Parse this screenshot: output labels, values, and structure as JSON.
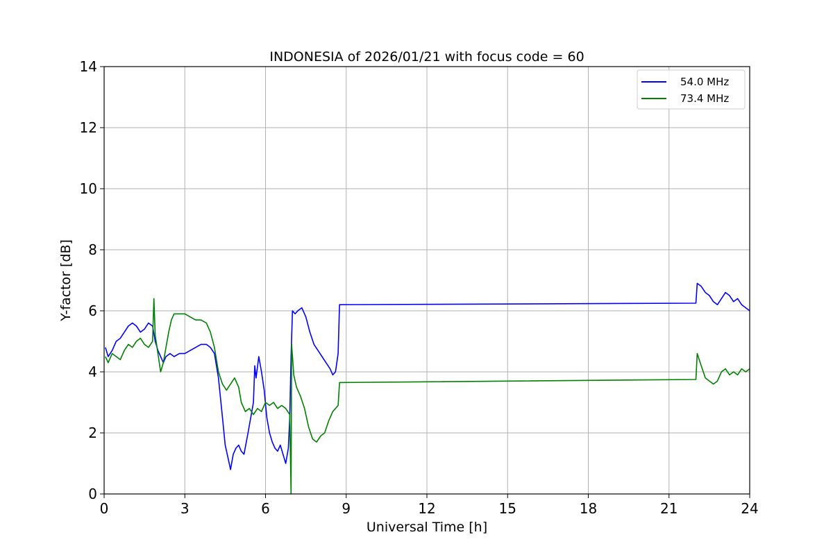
{
  "chart_data": {
    "type": "line",
    "title": "INDONESIA of 2026/01/21 with focus code = 60",
    "xlabel": "Universal Time [h]",
    "ylabel": "Y-factor [dB]",
    "xlim": [
      0,
      24
    ],
    "ylim": [
      0,
      14
    ],
    "xticks": [
      0,
      3,
      6,
      9,
      12,
      15,
      18,
      21,
      24
    ],
    "yticks": [
      0,
      2,
      4,
      6,
      8,
      10,
      12,
      14
    ],
    "grid": true,
    "legend_position": "top-right",
    "series": [
      {
        "name": "54.0 MHz",
        "color": "#0000ff",
        "points": [
          [
            0.05,
            4.8
          ],
          [
            0.15,
            4.5
          ],
          [
            0.3,
            4.7
          ],
          [
            0.45,
            5.0
          ],
          [
            0.6,
            5.1
          ],
          [
            0.75,
            5.3
          ],
          [
            0.9,
            5.5
          ],
          [
            1.05,
            5.6
          ],
          [
            1.2,
            5.5
          ],
          [
            1.35,
            5.3
          ],
          [
            1.5,
            5.4
          ],
          [
            1.65,
            5.6
          ],
          [
            1.8,
            5.5
          ],
          [
            1.9,
            5.0
          ],
          [
            2.0,
            4.7
          ],
          [
            2.1,
            4.5
          ],
          [
            2.2,
            4.3
          ],
          [
            2.3,
            4.5
          ],
          [
            2.45,
            4.6
          ],
          [
            2.6,
            4.5
          ],
          [
            2.8,
            4.6
          ],
          [
            3.0,
            4.6
          ],
          [
            3.2,
            4.7
          ],
          [
            3.4,
            4.8
          ],
          [
            3.6,
            4.9
          ],
          [
            3.8,
            4.9
          ],
          [
            3.95,
            4.8
          ],
          [
            4.1,
            4.6
          ],
          [
            4.25,
            3.8
          ],
          [
            4.4,
            2.5
          ],
          [
            4.5,
            1.6
          ],
          [
            4.6,
            1.2
          ],
          [
            4.7,
            0.8
          ],
          [
            4.8,
            1.3
          ],
          [
            4.9,
            1.5
          ],
          [
            5.0,
            1.6
          ],
          [
            5.1,
            1.4
          ],
          [
            5.2,
            1.3
          ],
          [
            5.35,
            2.0
          ],
          [
            5.45,
            2.5
          ],
          [
            5.55,
            3.0
          ],
          [
            5.6,
            4.2
          ],
          [
            5.65,
            3.8
          ],
          [
            5.75,
            4.5
          ],
          [
            5.85,
            4.0
          ],
          [
            5.95,
            3.4
          ],
          [
            6.05,
            2.5
          ],
          [
            6.15,
            2.0
          ],
          [
            6.25,
            1.7
          ],
          [
            6.35,
            1.5
          ],
          [
            6.45,
            1.4
          ],
          [
            6.55,
            1.6
          ],
          [
            6.65,
            1.3
          ],
          [
            6.75,
            1.0
          ],
          [
            6.85,
            1.5
          ],
          [
            6.9,
            2.5
          ],
          [
            6.95,
            4.5
          ],
          [
            7.0,
            6.0
          ],
          [
            7.1,
            5.9
          ],
          [
            7.2,
            6.0
          ],
          [
            7.35,
            6.1
          ],
          [
            7.5,
            5.8
          ],
          [
            7.65,
            5.3
          ],
          [
            7.8,
            4.9
          ],
          [
            7.95,
            4.7
          ],
          [
            8.1,
            4.5
          ],
          [
            8.25,
            4.3
          ],
          [
            8.4,
            4.1
          ],
          [
            8.5,
            3.9
          ],
          [
            8.6,
            4.0
          ],
          [
            8.7,
            4.6
          ],
          [
            8.75,
            6.2
          ],
          [
            22.0,
            6.25
          ],
          [
            22.05,
            6.9
          ],
          [
            22.2,
            6.8
          ],
          [
            22.35,
            6.6
          ],
          [
            22.5,
            6.5
          ],
          [
            22.65,
            6.3
          ],
          [
            22.8,
            6.2
          ],
          [
            22.95,
            6.4
          ],
          [
            23.1,
            6.6
          ],
          [
            23.25,
            6.5
          ],
          [
            23.4,
            6.3
          ],
          [
            23.55,
            6.4
          ],
          [
            23.7,
            6.2
          ],
          [
            23.85,
            6.1
          ],
          [
            24.0,
            6.0
          ]
        ]
      },
      {
        "name": "73.4 MHz",
        "color": "#008000",
        "points": [
          [
            0.05,
            4.5
          ],
          [
            0.15,
            4.3
          ],
          [
            0.3,
            4.6
          ],
          [
            0.45,
            4.5
          ],
          [
            0.6,
            4.4
          ],
          [
            0.75,
            4.7
          ],
          [
            0.9,
            4.9
          ],
          [
            1.05,
            4.8
          ],
          [
            1.2,
            5.0
          ],
          [
            1.35,
            5.1
          ],
          [
            1.5,
            4.9
          ],
          [
            1.65,
            4.8
          ],
          [
            1.8,
            5.0
          ],
          [
            1.85,
            6.4
          ],
          [
            1.9,
            5.2
          ],
          [
            2.0,
            4.6
          ],
          [
            2.1,
            4.0
          ],
          [
            2.2,
            4.3
          ],
          [
            2.3,
            4.8
          ],
          [
            2.4,
            5.3
          ],
          [
            2.5,
            5.7
          ],
          [
            2.6,
            5.9
          ],
          [
            2.8,
            5.9
          ],
          [
            3.0,
            5.9
          ],
          [
            3.2,
            5.8
          ],
          [
            3.4,
            5.7
          ],
          [
            3.6,
            5.7
          ],
          [
            3.8,
            5.6
          ],
          [
            3.95,
            5.3
          ],
          [
            4.1,
            4.8
          ],
          [
            4.25,
            4.0
          ],
          [
            4.4,
            3.6
          ],
          [
            4.55,
            3.4
          ],
          [
            4.7,
            3.6
          ],
          [
            4.85,
            3.8
          ],
          [
            5.0,
            3.5
          ],
          [
            5.1,
            3.0
          ],
          [
            5.25,
            2.7
          ],
          [
            5.4,
            2.8
          ],
          [
            5.55,
            2.6
          ],
          [
            5.7,
            2.8
          ],
          [
            5.85,
            2.7
          ],
          [
            6.0,
            3.0
          ],
          [
            6.15,
            2.9
          ],
          [
            6.3,
            3.0
          ],
          [
            6.45,
            2.8
          ],
          [
            6.6,
            2.9
          ],
          [
            6.75,
            2.8
          ],
          [
            6.9,
            2.6
          ],
          [
            6.95,
            0.0
          ],
          [
            6.97,
            4.9
          ],
          [
            7.05,
            3.9
          ],
          [
            7.15,
            3.5
          ],
          [
            7.3,
            3.2
          ],
          [
            7.45,
            2.8
          ],
          [
            7.6,
            2.2
          ],
          [
            7.75,
            1.8
          ],
          [
            7.9,
            1.7
          ],
          [
            8.05,
            1.9
          ],
          [
            8.2,
            2.0
          ],
          [
            8.35,
            2.4
          ],
          [
            8.5,
            2.7
          ],
          [
            8.6,
            2.8
          ],
          [
            8.7,
            2.9
          ],
          [
            8.75,
            3.65
          ],
          [
            22.0,
            3.75
          ],
          [
            22.05,
            4.6
          ],
          [
            22.2,
            4.2
          ],
          [
            22.35,
            3.8
          ],
          [
            22.5,
            3.7
          ],
          [
            22.65,
            3.6
          ],
          [
            22.8,
            3.7
          ],
          [
            22.95,
            4.0
          ],
          [
            23.1,
            4.1
          ],
          [
            23.25,
            3.9
          ],
          [
            23.4,
            4.0
          ],
          [
            23.55,
            3.9
          ],
          [
            23.7,
            4.1
          ],
          [
            23.85,
            4.0
          ],
          [
            24.0,
            4.1
          ]
        ]
      }
    ]
  }
}
